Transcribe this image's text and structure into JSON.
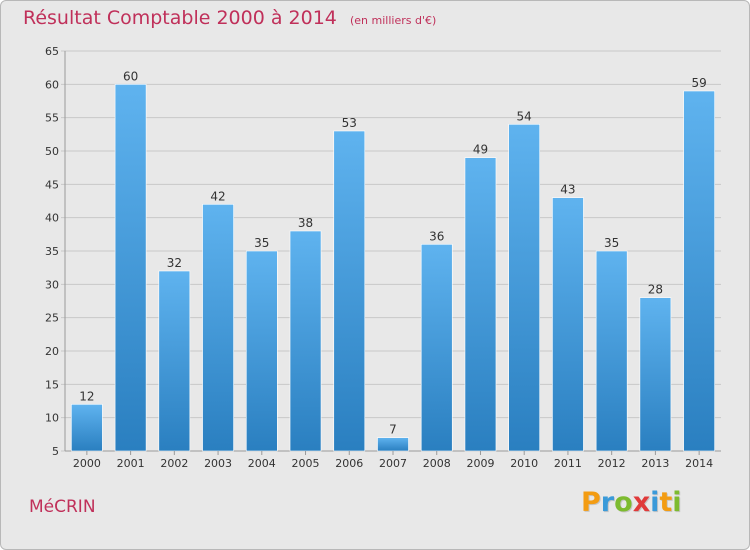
{
  "header": {
    "title": "Résultat Comptable 2000 à 2014",
    "subtitle": "(en milliers d'€)"
  },
  "footer": {
    "commune": "MéCRIN",
    "logo_letters": [
      {
        "char": "P",
        "color": "#f39c12"
      },
      {
        "char": "r",
        "color": "#3a9ad9"
      },
      {
        "char": "o",
        "color": "#7dbb2f"
      },
      {
        "char": "x",
        "color": "#e03a3a"
      },
      {
        "char": "i",
        "color": "#3a9ad9"
      },
      {
        "char": "t",
        "color": "#f39c12"
      },
      {
        "char": "i",
        "color": "#7dbb2f"
      }
    ]
  },
  "colors": {
    "bar_top": "#5fb3ef",
    "bar_bottom": "#2a7fc0",
    "grid": "#c9c9c9",
    "axis_text": "#333333",
    "accent": "#c0305a"
  },
  "chart_data": {
    "type": "bar",
    "categories": [
      "2000",
      "2001",
      "2002",
      "2003",
      "2004",
      "2005",
      "2006",
      "2007",
      "2008",
      "2009",
      "2010",
      "2011",
      "2012",
      "2013",
      "2014"
    ],
    "values": [
      12,
      60,
      32,
      42,
      35,
      38,
      53,
      7,
      36,
      49,
      54,
      43,
      35,
      28,
      59
    ],
    "title": "Résultat Comptable 2000 à 2014",
    "xlabel": "",
    "ylabel": "",
    "ylim": [
      5,
      65
    ],
    "yticks": [
      5,
      10,
      15,
      20,
      25,
      30,
      35,
      40,
      45,
      50,
      55,
      60,
      65
    ],
    "grid": true,
    "data_labels": true
  }
}
